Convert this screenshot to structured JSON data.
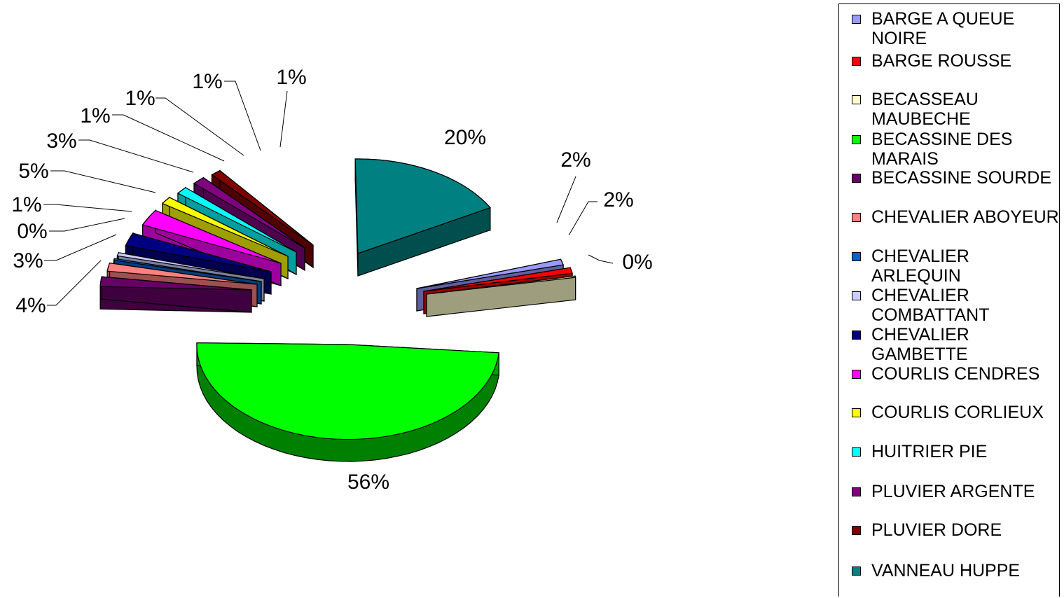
{
  "chart_data": {
    "type": "pie",
    "title": "",
    "exploded": true,
    "three_d": true,
    "legend_position": "right",
    "series": [
      {
        "name": "BARGE A QUEUE NOIRE",
        "value": 2,
        "label": "2%",
        "color": "#9999ff"
      },
      {
        "name": "BARGE ROUSSE",
        "value": 2,
        "label": "2%",
        "color": "#ff0000"
      },
      {
        "name": "BECASSEAU MAUBECHE",
        "value": 0,
        "label": "0%",
        "color": "#ffffcc"
      },
      {
        "name": "BECASSINE DES MARAIS",
        "value": 56,
        "label": "56%",
        "color": "#00ff00"
      },
      {
        "name": "BECASSINE SOURDE",
        "value": 4,
        "label": "4%",
        "color": "#660066"
      },
      {
        "name": "CHEVALIER ABOYEUR",
        "value": 3,
        "label": "3%",
        "color": "#ff8080"
      },
      {
        "name": "CHEVALIER ARLEQUIN",
        "value": 0,
        "label": "0%",
        "color": "#0066cc"
      },
      {
        "name": "CHEVALIER COMBATTANT",
        "value": 1,
        "label": "1%",
        "color": "#ccccff"
      },
      {
        "name": "CHEVALIER GAMBETTE",
        "value": 5,
        "label": "5%",
        "color": "#000080"
      },
      {
        "name": "COURLIS CENDRES",
        "value": 3,
        "label": "3%",
        "color": "#ff00ff"
      },
      {
        "name": "COURLIS CORLIEUX",
        "value": 1,
        "label": "1%",
        "color": "#ffff00"
      },
      {
        "name": "HUITRIER PIE",
        "value": 1,
        "label": "1%",
        "color": "#00ffff"
      },
      {
        "name": "PLUVIER ARGENTE",
        "value": 1,
        "label": "1%",
        "color": "#800080"
      },
      {
        "name": "PLUVIER DORE",
        "value": 1,
        "label": "1%",
        "color": "#800000"
      },
      {
        "name": "VANNEAU HUPPE",
        "value": 20,
        "label": "20%",
        "color": "#008080"
      }
    ]
  }
}
